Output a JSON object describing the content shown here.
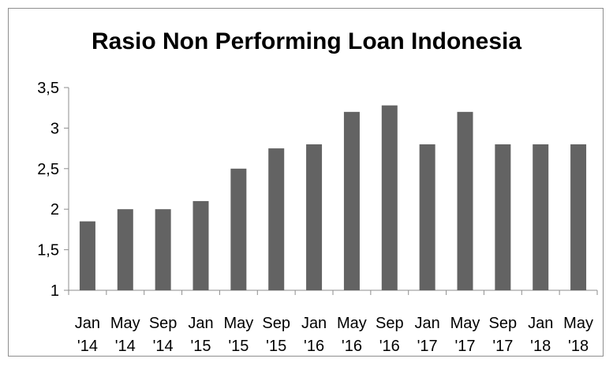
{
  "chart_data": {
    "type": "bar",
    "title": "Rasio Non Performing Loan Indonesia",
    "categories": [
      [
        "Jan",
        "'14"
      ],
      [
        "May",
        "'14"
      ],
      [
        "Sep",
        "'14"
      ],
      [
        "Jan",
        "'15"
      ],
      [
        "May",
        "'15"
      ],
      [
        "Sep",
        "'15"
      ],
      [
        "Jan",
        "'16"
      ],
      [
        "May",
        "'16"
      ],
      [
        "Sep",
        "'16"
      ],
      [
        "Jan",
        "'17"
      ],
      [
        "May",
        "'17"
      ],
      [
        "Sep",
        "'17"
      ],
      [
        "Jan",
        "'18"
      ],
      [
        "May",
        "'18"
      ]
    ],
    "values": [
      1.85,
      2.0,
      2.0,
      2.1,
      2.5,
      2.75,
      2.8,
      3.2,
      3.28,
      2.8,
      3.2,
      2.8,
      2.8,
      2.8
    ],
    "ylim": [
      1,
      3.5
    ],
    "yticks": [
      1,
      1.5,
      2,
      2.5,
      3,
      3.5
    ],
    "ytick_labels": [
      "1",
      "1,5",
      "2",
      "2,5",
      "3",
      "3,5"
    ],
    "xlabel": "",
    "ylabel": "",
    "grid": false,
    "legend": "none",
    "bar_color": "#636363"
  }
}
